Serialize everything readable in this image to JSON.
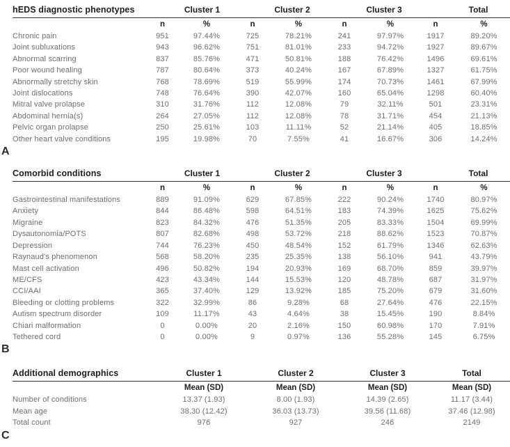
{
  "colors": {
    "header_text": "#1d1d1d",
    "data_text": "#6b6e70",
    "rule": "#2f2f2f",
    "background": "#ffffff"
  },
  "tables": [
    {
      "label": "A",
      "title": "hEDS diagnostic phenotypes",
      "group_headers": [
        "Cluster 1",
        "Cluster 2",
        "Cluster 3",
        "Total"
      ],
      "sub_headers": [
        "n",
        "%",
        "n",
        "%",
        "n",
        "%",
        "n",
        "%"
      ],
      "rows": [
        [
          "Chronic pain",
          "951",
          "97.44%",
          "725",
          "78.21%",
          "241",
          "97.97%",
          "1917",
          "89.20%"
        ],
        [
          "Joint subluxations",
          "943",
          "96.62%",
          "751",
          "81.01%",
          "233",
          "94.72%",
          "1927",
          "89.67%"
        ],
        [
          "Abnormal scarring",
          "837",
          "85.76%",
          "471",
          "50.81%",
          "188",
          "76.42%",
          "1496",
          "69.61%"
        ],
        [
          "Poor wound healing",
          "787",
          "80.64%",
          "373",
          "40.24%",
          "167",
          "67.89%",
          "1327",
          "61.75%"
        ],
        [
          "Abnormally stretchy skin",
          "768",
          "78.69%",
          "519",
          "55.99%",
          "174",
          "70.73%",
          "1461",
          "67.99%"
        ],
        [
          "Joint dislocations",
          "748",
          "76.64%",
          "390",
          "42.07%",
          "160",
          "65.04%",
          "1298",
          "60.40%"
        ],
        [
          "Mitral valve prolapse",
          "310",
          "31.76%",
          "112",
          "12.08%",
          "79",
          "32.11%",
          "501",
          "23.31%"
        ],
        [
          "Abdominal hernia(s)",
          "264",
          "27.05%",
          "112",
          "12.08%",
          "78",
          "31.71%",
          "454",
          "21.13%"
        ],
        [
          "Pelvic organ prolapse",
          "250",
          "25.61%",
          "103",
          "11.11%",
          "52",
          "21.14%",
          "405",
          "18.85%"
        ],
        [
          "Other heart valve conditions",
          "195",
          "19.98%",
          "70",
          "7.55%",
          "41",
          "16.67%",
          "306",
          "14.24%"
        ]
      ]
    },
    {
      "label": "B",
      "title": "Comorbid conditions",
      "group_headers": [
        "Cluster 1",
        "Cluster 2",
        "Cluster 3",
        "Total"
      ],
      "sub_headers": [
        "n",
        "%",
        "n",
        "%",
        "n",
        "%",
        "n",
        "%"
      ],
      "rows": [
        [
          "Gastrointestinal manifestations",
          "889",
          "91.09%",
          "629",
          "67.85%",
          "222",
          "90.24%",
          "1740",
          "80.97%"
        ],
        [
          "Anxiety",
          "844",
          "86.48%",
          "598",
          "64.51%",
          "183",
          "74.39%",
          "1625",
          "75.62%"
        ],
        [
          "Migraine",
          "823",
          "84.32%",
          "476",
          "51.35%",
          "205",
          "83.33%",
          "1504",
          "69.99%"
        ],
        [
          "Dysautonomia/POTS",
          "807",
          "82.68%",
          "498",
          "53.72%",
          "218",
          "88.62%",
          "1523",
          "70.87%"
        ],
        [
          "Depression",
          "744",
          "76.23%",
          "450",
          "48.54%",
          "152",
          "61.79%",
          "1346",
          "62.63%"
        ],
        [
          "Raynaud's phenomenon",
          "568",
          "58.20%",
          "235",
          "25.35%",
          "138",
          "56.10%",
          "941",
          "43.79%"
        ],
        [
          "Mast cell activation",
          "496",
          "50.82%",
          "194",
          "20.93%",
          "169",
          "68.70%",
          "859",
          "39.97%"
        ],
        [
          "ME/CFS",
          "423",
          "43.34%",
          "144",
          "15.53%",
          "120",
          "48.78%",
          "687",
          "31.97%"
        ],
        [
          "CCI/AAI",
          "365",
          "37.40%",
          "129",
          "13.92%",
          "185",
          "75.20%",
          "679",
          "31.60%"
        ],
        [
          "Bleeding or clotting problems",
          "322",
          "32.99%",
          "86",
          "9.28%",
          "68",
          "27.64%",
          "476",
          "22.15%"
        ],
        [
          "Autism spectrum disorder",
          "109",
          "11.17%",
          "43",
          "4.64%",
          "38",
          "15.45%",
          "190",
          "8.84%"
        ],
        [
          "Chiari malformation",
          "0",
          "0.00%",
          "20",
          "2.16%",
          "150",
          "60.98%",
          "170",
          "7.91%"
        ],
        [
          "Tethered cord",
          "0",
          "0.00%",
          "9",
          "0.97%",
          "136",
          "55.28%",
          "145",
          "6.75%"
        ]
      ]
    },
    {
      "label": "C",
      "title": "Additional demographics",
      "group_headers": [
        "Cluster 1",
        "Cluster 2",
        "Cluster 3",
        "Total"
      ],
      "sub_headers": [
        "Mean (SD)",
        "Mean (SD)",
        "Mean (SD)",
        "Mean (SD)"
      ],
      "rows": [
        [
          "Number of conditions",
          "13.37 (1.93)",
          "8.00 (1.93)",
          "14.39 (2.65)",
          "11.17 (3.44)"
        ],
        [
          "Mean age",
          "38.30 (12.42)",
          "36.03 (13.73)",
          "39.56 (11.68)",
          "37.46 (12.98)"
        ],
        [
          "Total count",
          "976",
          "927",
          "246",
          "2149"
        ]
      ]
    }
  ]
}
